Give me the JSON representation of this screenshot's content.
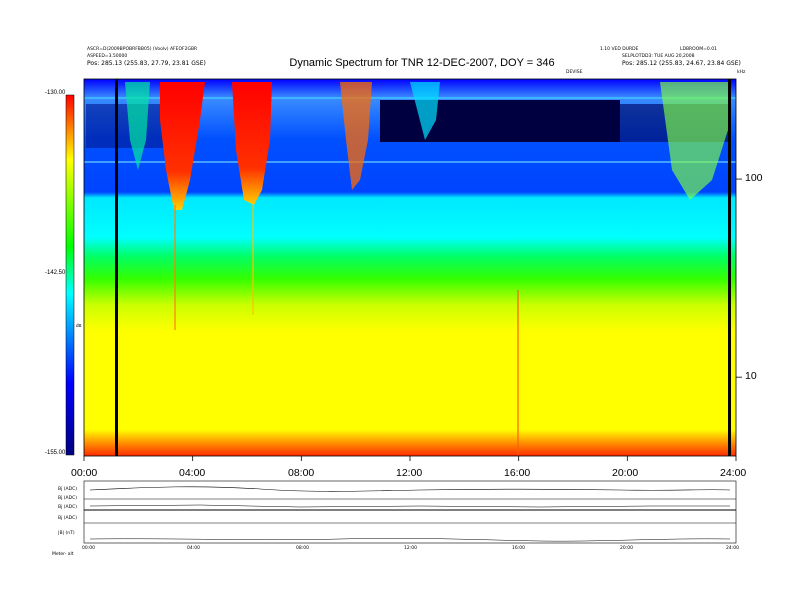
{
  "header": {
    "title": "Dynamic Spectrum for TNR 12-DEC-2007, DOY = 346",
    "left_line1": "ASCR=D(2009BPOBRFBB05) (Voolv) AFEOF2GBR",
    "left_line2": "ASPEED=3.50000",
    "left_line3": "Pos:   285.13 (255.83, 27.79, 23.81 GSE)",
    "center_small": "1.10 VED DURDE",
    "center_small2": "DEVISE",
    "right_line1": "LDBROOM=0.01",
    "right_line2": "SELPLOTDD3: TUE AUG 20,2008",
    "right_line3": "Pos:   285.12 (255.83, 24.67, 23.84 GSE)",
    "right_unit": "kHz"
  },
  "colorbar": {
    "labels": [
      "-130.00",
      "-142.50",
      "-155.00"
    ],
    "unit": "dB"
  },
  "panels": {
    "labels": [
      "Bj (ADC)",
      "Bj (ADC)",
      "Bj (ADC)",
      "Bj (ADC)",
      "|B| (nT)"
    ],
    "bottom_left": "Meter-   alt",
    "bottom_ticks": [
      "00:00",
      "04:00",
      "08:00",
      "12:00",
      "16:00",
      "20:00",
      "24:00"
    ]
  },
  "chart_data": {
    "type": "heatmap",
    "title": "Dynamic Spectrum for TNR 12-DEC-2007, DOY = 346",
    "x_ticks": [
      "00:00",
      "04:00",
      "08:00",
      "12:00",
      "16:00",
      "20:00",
      "24:00"
    ],
    "x_range_hours": [
      0,
      24
    ],
    "y_scale": "log",
    "y_ticks": [
      10,
      100
    ],
    "y_unit": "kHz",
    "y_range_khz": [
      4,
      320
    ],
    "color_scale_db": [
      -155.0,
      -130.0
    ],
    "colormap": [
      "#0000a0",
      "#0000ff",
      "#00ffff",
      "#00ff00",
      "#ffff00",
      "#ff0000"
    ],
    "vertical_black_lines_hours": [
      1.2,
      24.0
    ]
  }
}
